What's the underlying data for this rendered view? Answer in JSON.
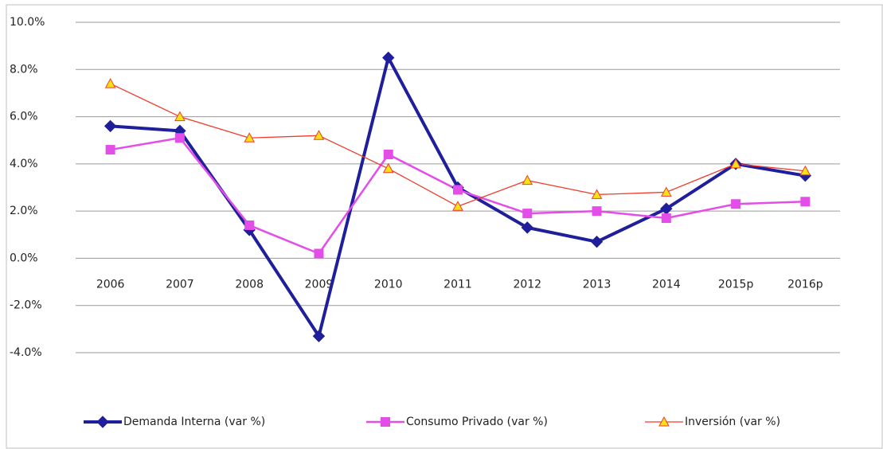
{
  "chart_data": {
    "type": "line",
    "categories": [
      "2006",
      "2007",
      "2008",
      "2009",
      "2010",
      "2011",
      "2012",
      "2013",
      "2014",
      "2015p",
      "2016p"
    ],
    "series": [
      {
        "name": "Demanda Interna (var %)",
        "color": "#1f1f9c",
        "marker": "diamond",
        "marker_fill": "#1f1f9c",
        "values": [
          5.6,
          5.4,
          1.2,
          -3.3,
          8.5,
          3.0,
          1.3,
          0.7,
          2.1,
          4.0,
          3.5
        ]
      },
      {
        "name": "Consumo Privado (var %)",
        "color": "#e34ee8",
        "marker": "square",
        "marker_fill": "#e34ee8",
        "values": [
          4.6,
          5.1,
          1.4,
          0.2,
          4.4,
          2.9,
          1.9,
          2.0,
          1.7,
          2.3,
          2.4
        ]
      },
      {
        "name": "Inversión (var %)",
        "color": "#f23a2a",
        "marker": "triangle",
        "marker_fill": "#f7e315",
        "values": [
          7.4,
          6.0,
          5.1,
          5.2,
          3.8,
          2.2,
          3.3,
          2.7,
          2.8,
          4.0,
          3.7
        ]
      }
    ],
    "ylim": [
      -4,
      10
    ],
    "yticks": [
      {
        "value": -4,
        "label": "-4.0%"
      },
      {
        "value": -2,
        "label": "-2.0%"
      },
      {
        "value": 0,
        "label": "0.0%"
      },
      {
        "value": 2,
        "label": "2.0%"
      },
      {
        "value": 4,
        "label": "4.0%"
      },
      {
        "value": 6,
        "label": "6.0%"
      },
      {
        "value": 8,
        "label": "8.0%"
      },
      {
        "value": 10,
        "label": "10.0%"
      }
    ],
    "grid": true,
    "legend": "bottom"
  }
}
